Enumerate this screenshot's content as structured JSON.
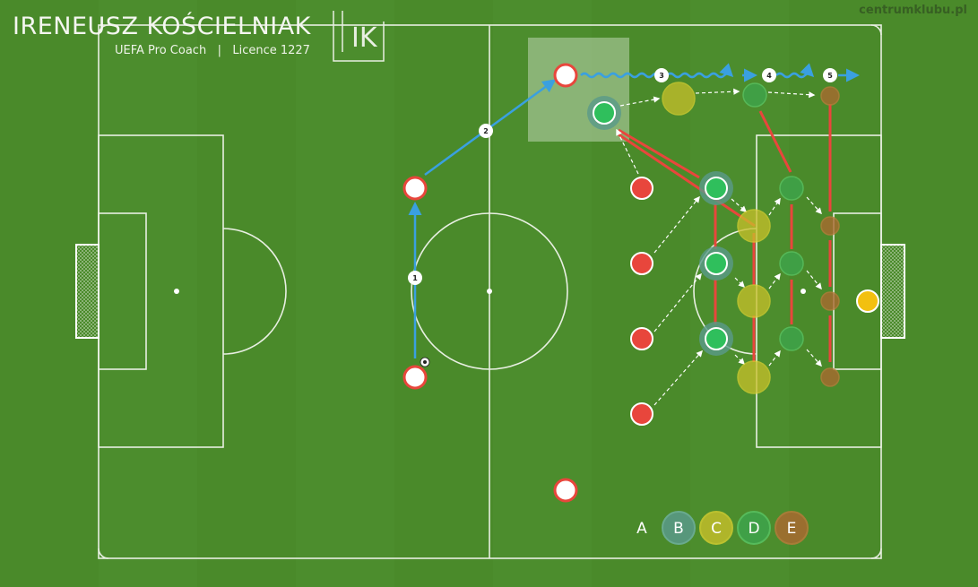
{
  "header": {
    "coach_name": "IRENEUSZ KOŚCIELNIAK",
    "coach_subtitle": "UEFA Pro Coach   |   Licence 1227",
    "logo_text": "IK",
    "watermark": "centrumklubu.pl"
  },
  "colors": {
    "pitch": "#4a8a2a",
    "line": "#e8efe2",
    "red_player": "#e8463c",
    "green_player": "#2fbf5c",
    "teal_ring": "#5a9a8a",
    "yellow_zone": "#c8c02a",
    "green_zone": "#3ea34a",
    "brown_zone": "#a86a30",
    "goalkeeper": "#f2c010",
    "pass_arrow": "#3aa0e0",
    "press_line": "#e8463c"
  },
  "sequence_labels": [
    "1",
    "2",
    "3",
    "4",
    "5"
  ],
  "legend": {
    "items": [
      {
        "label": "A"
      },
      {
        "label": "B"
      },
      {
        "label": "C"
      },
      {
        "label": "D"
      },
      {
        "label": "E"
      }
    ]
  }
}
